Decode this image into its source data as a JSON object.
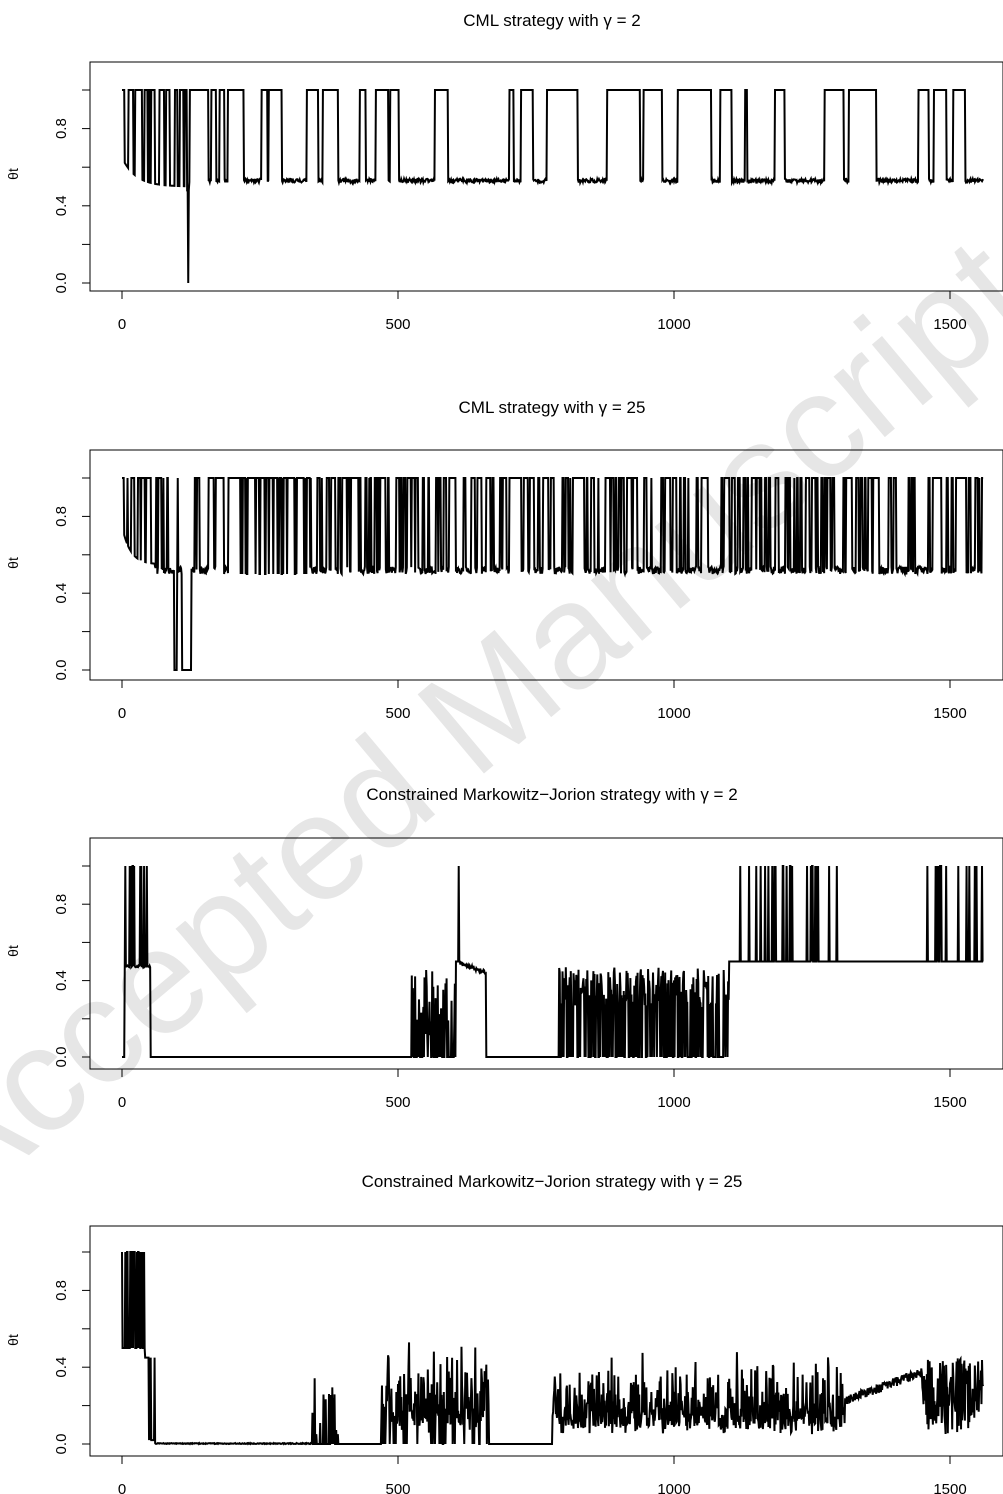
{
  "watermark": "Accepted Manuscript",
  "colors": {
    "line": "#000000",
    "watermark": "#e6e6e6",
    "background": "#ffffff"
  },
  "chart_data": [
    {
      "type": "line",
      "title": "CML strategy with γ = 2",
      "xlabel": "",
      "ylabel": "θt",
      "xlim": [
        0,
        1560
      ],
      "ylim": [
        0,
        1
      ],
      "x_ticks": [
        0,
        500,
        1000,
        1500
      ],
      "x_tick_labels": [
        "0",
        "500",
        "1000",
        "1500"
      ],
      "y_ticks": [
        0.0,
        0.4,
        0.8
      ],
      "y_tick_labels": [
        "0.0",
        "0.4",
        "0.8"
      ],
      "grid": false,
      "series": [
        {
          "pattern": "regime-switching",
          "low_level": 0.52,
          "high_level": 1.0,
          "notes": "starts ~0.65, drifts to ~0.5, single dip to 0 near t=120, then frequent switches between ~0.52 and 1.0"
        }
      ]
    },
    {
      "type": "line",
      "title": "CML strategy with γ = 25",
      "xlabel": "",
      "ylabel": "θt",
      "xlim": [
        0,
        1560
      ],
      "ylim": [
        0,
        1
      ],
      "x_ticks": [
        0,
        500,
        1000,
        1500
      ],
      "x_tick_labels": [
        "0",
        "500",
        "1000",
        "1500"
      ],
      "y_ticks": [
        0.0,
        0.4,
        0.8
      ],
      "y_tick_labels": [
        "0.0",
        "0.4",
        "0.8"
      ],
      "grid": false,
      "series": [
        {
          "pattern": "rapid-switching",
          "low_level": 0.5,
          "high_level": 1.0,
          "notes": "dense switching between ~0.5 and 1.0; drops to 0 around t=95-120; mostly 1.0 between 200-340"
        }
      ]
    },
    {
      "type": "line",
      "title": "Constrained Markowitz−Jorion strategy with γ = 2",
      "xlabel": "",
      "ylabel": "θt",
      "xlim": [
        0,
        1560
      ],
      "ylim": [
        0,
        1
      ],
      "x_ticks": [
        0,
        500,
        1000,
        1500
      ],
      "x_tick_labels": [
        "0",
        "500",
        "1000",
        "1500"
      ],
      "y_ticks": [
        0.0,
        0.4,
        0.8
      ],
      "y_tick_labels": [
        "0.0",
        "0.4",
        "0.8"
      ],
      "grid": false,
      "series": [
        {
          "pattern": "segments",
          "notes": "0.48 with spikes to 1 over 5-50; 0 from 55-520; bursts 520-660 with spike to 1 at 610; 0 until 790; bursts to ~0.45 from 790-1100; 0.5 with spikes to 1 from 1100-1560"
        }
      ]
    },
    {
      "type": "line",
      "title": "Constrained Markowitz−Jorion strategy with γ = 25",
      "xlabel": "",
      "ylabel": "θt",
      "xlim": [
        0,
        1560
      ],
      "ylim": [
        0,
        1
      ],
      "x_ticks": [
        0,
        500,
        1000,
        1500
      ],
      "x_tick_labels": [
        "0",
        "500",
        "1000",
        "1500"
      ],
      "y_ticks": [
        0.0,
        0.4,
        0.8
      ],
      "y_tick_labels": [
        "0.0",
        "0.4",
        "0.8"
      ],
      "grid": false,
      "series": [
        {
          "pattern": "noisy",
          "notes": "1.0/0.5 spikes over 0-40; near 0 from 60-340; small spikes ~0.3 at 345-390; noise up to 0.5 over 470-660; noise 0.05-0.45 over 780-1310; ramp ~0.2-0.35 from 1310-1450 then noise to 1560"
        }
      ]
    }
  ]
}
